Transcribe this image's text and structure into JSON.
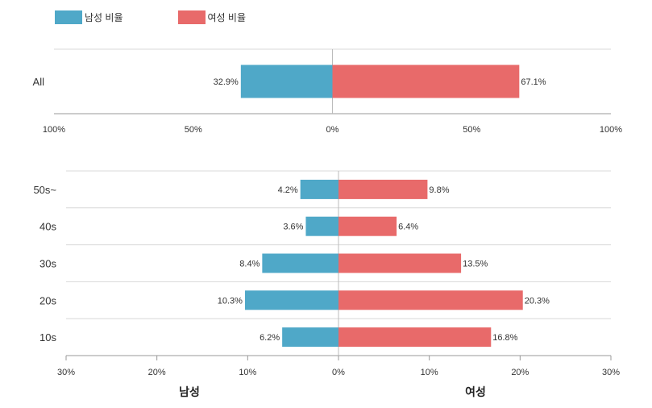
{
  "legend": {
    "male_label": "남성 비율",
    "female_label": "여성 비율",
    "male_color": "#4fa8c8",
    "female_color": "#e86a6a"
  },
  "chart_data": [
    {
      "type": "bar",
      "orientation": "horizontal",
      "stacking": "diverging",
      "categories": [
        "All"
      ],
      "series": [
        {
          "name": "남성 비율",
          "values": [
            32.9
          ],
          "labels": [
            "32.9%"
          ],
          "color": "#4fa8c8"
        },
        {
          "name": "여성 비율",
          "values": [
            67.1
          ],
          "labels": [
            "67.1%"
          ],
          "color": "#e86a6a"
        }
      ],
      "xlim": [
        -100,
        100
      ],
      "xticks": [
        "100%",
        "50%",
        "0%",
        "50%",
        "100%"
      ],
      "grid": true
    },
    {
      "type": "bar",
      "orientation": "horizontal",
      "stacking": "diverging",
      "categories": [
        "50s~",
        "40s",
        "30s",
        "20s",
        "10s"
      ],
      "series": [
        {
          "name": "남성 비율",
          "values": [
            4.2,
            3.6,
            8.4,
            10.3,
            6.2
          ],
          "labels": [
            "4.2%",
            "3.6%",
            "8.4%",
            "10.3%",
            "6.2%"
          ],
          "color": "#4fa8c8"
        },
        {
          "name": "여성 비율",
          "values": [
            9.8,
            6.4,
            13.5,
            20.3,
            16.8
          ],
          "labels": [
            "9.8%",
            "6.4%",
            "13.5%",
            "20.3%",
            "16.8%"
          ],
          "color": "#e86a6a"
        }
      ],
      "xlim": [
        -30,
        30
      ],
      "xticks": [
        "30%",
        "20%",
        "10%",
        "0%",
        "10%",
        "20%",
        "30%"
      ],
      "side_labels": {
        "left": "남성",
        "right": "여성"
      },
      "grid": true
    }
  ]
}
